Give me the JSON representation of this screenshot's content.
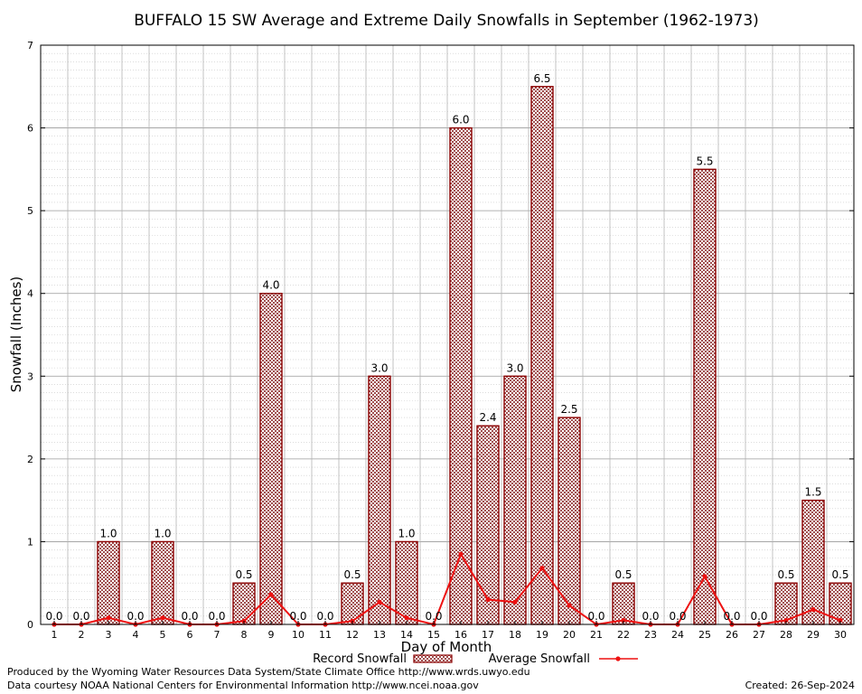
{
  "chart_data": {
    "type": "bar",
    "title": "BUFFALO 15 SW Average and Extreme Daily Snowfalls in September (1962-1973)",
    "xlabel": "Day of Month",
    "ylabel": "Snowfall (Inches)",
    "ylim": [
      0,
      7
    ],
    "yticks": [
      0,
      1,
      2,
      3,
      4,
      5,
      6,
      7
    ],
    "grid": true,
    "legend_position": "bottom-center",
    "categories": [
      "1",
      "2",
      "3",
      "4",
      "5",
      "6",
      "7",
      "8",
      "9",
      "10",
      "11",
      "12",
      "13",
      "14",
      "15",
      "16",
      "17",
      "18",
      "19",
      "20",
      "21",
      "22",
      "23",
      "24",
      "25",
      "26",
      "27",
      "28",
      "29",
      "30"
    ],
    "series": [
      {
        "name": "Record Snowfall",
        "type": "bar",
        "color": "#8b0000",
        "values": [
          0.0,
          0.0,
          1.0,
          0.0,
          1.0,
          0.0,
          0.0,
          0.5,
          4.0,
          0.0,
          0.0,
          0.5,
          3.0,
          1.0,
          0.0,
          6.0,
          2.4,
          3.0,
          6.5,
          2.5,
          0.0,
          0.5,
          0.0,
          0.0,
          5.5,
          0.0,
          0.0,
          0.5,
          1.5,
          0.5
        ],
        "labels": [
          "0.0",
          "0.0",
          "1.0",
          "0.0",
          "1.0",
          "0.0",
          "0.0",
          "0.5",
          "4.0",
          "0.0",
          "0.0",
          "0.5",
          "3.0",
          "1.0",
          "0.0",
          "6.0",
          "2.4",
          "3.0",
          "6.5",
          "2.5",
          "0.0",
          "0.5",
          "0.0",
          "0.0",
          "5.5",
          "0.0",
          "0.0",
          "0.5",
          "1.5",
          "0.5"
        ]
      },
      {
        "name": "Average Snowfall",
        "type": "line",
        "color": "#ee1111",
        "values": [
          0.0,
          0.0,
          0.08,
          0.0,
          0.08,
          0.0,
          0.0,
          0.04,
          0.36,
          0.0,
          0.0,
          0.04,
          0.27,
          0.08,
          0.0,
          0.85,
          0.3,
          0.27,
          0.68,
          0.23,
          0.0,
          0.05,
          0.0,
          0.0,
          0.58,
          0.0,
          0.0,
          0.05,
          0.18,
          0.05
        ]
      }
    ]
  },
  "footer": {
    "produced_by": "Produced by the Wyoming Water Resources Data System/State Climate Office http://www.wrds.uwyo.edu",
    "courtesy": "Data courtesy NOAA National Centers for Environmental Information http://www.ncei.noaa.gov",
    "created": "Created:  26-Sep-2024"
  }
}
